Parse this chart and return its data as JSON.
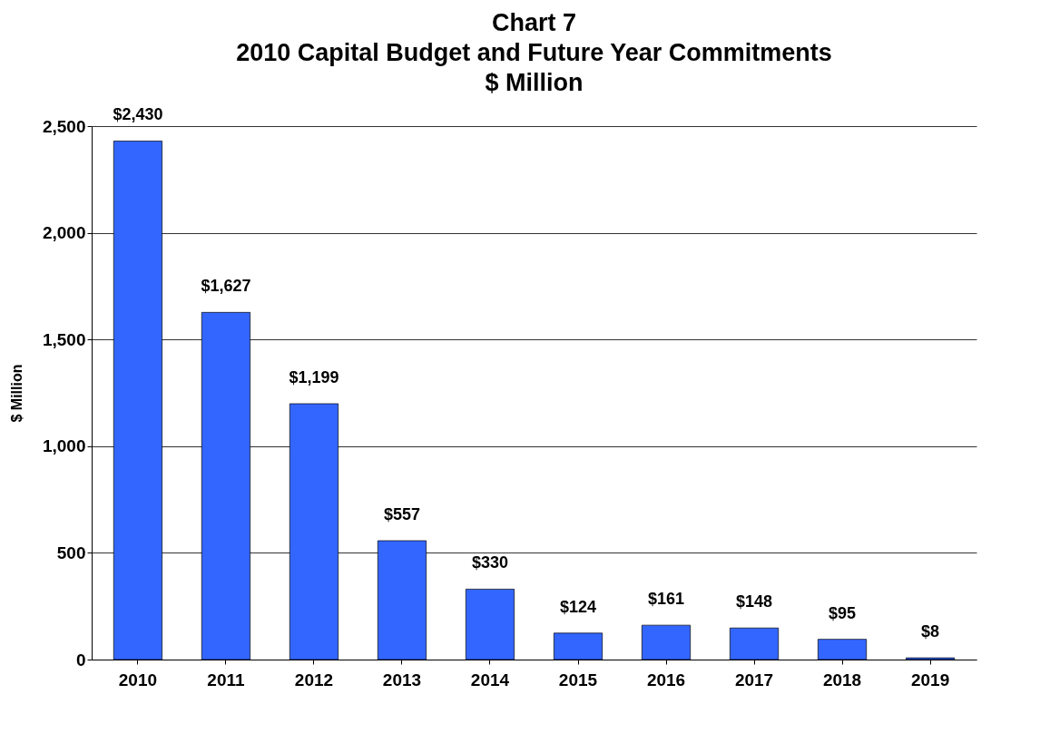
{
  "chart_data": {
    "type": "bar",
    "title": "Chart 7\n2010 Capital Budget and Future Year Commitments\n$ Million",
    "ylabel": "$ Million",
    "categories": [
      "2010",
      "2011",
      "2012",
      "2013",
      "2014",
      "2015",
      "2016",
      "2017",
      "2018",
      "2019"
    ],
    "values": [
      2430,
      1627,
      1199,
      557,
      330,
      124,
      161,
      148,
      95,
      8
    ],
    "value_labels": [
      "$2,430",
      "$1,627",
      "$1,199",
      "$557",
      "$330",
      "$124",
      "$161",
      "$148",
      "$95",
      "$8"
    ],
    "color": "#3366ff",
    "ylim": [
      0,
      2500
    ],
    "yticks": [
      0,
      500,
      {
        "value": 1000,
        "label": "1,000"
      },
      {
        "value": 1500,
        "label": "1,500"
      },
      {
        "value": 2000,
        "label": "2,000"
      },
      {
        "value": 2500,
        "label": "2,500"
      }
    ],
    "grid": "y"
  }
}
